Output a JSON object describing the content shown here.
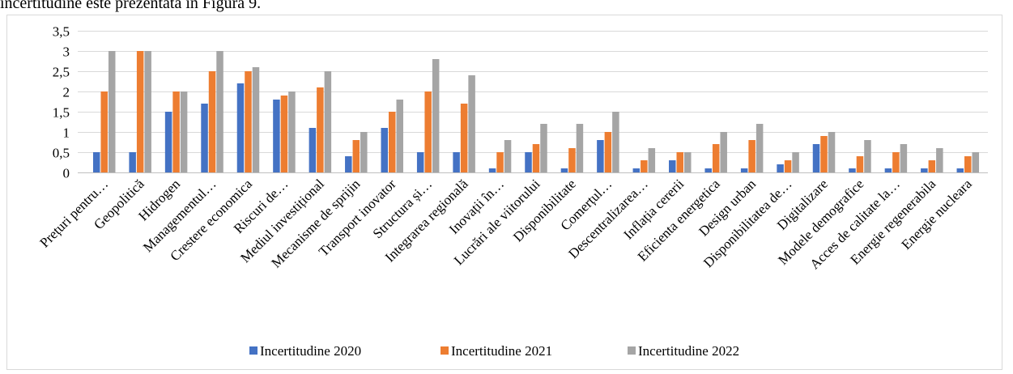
{
  "document": {
    "text_above": "incertitudine este prezentată în Figura 9."
  },
  "chart_data": {
    "type": "bar",
    "ylim": [
      0,
      3.5
    ],
    "yticks": [
      0,
      0.5,
      1,
      1.5,
      2,
      2.5,
      3,
      3.5
    ],
    "ytick_labels": [
      "0",
      "0,5",
      "1",
      "1,5",
      "2",
      "2,5",
      "3",
      "3,5"
    ],
    "grid": true,
    "legend": "bottom",
    "categories": [
      "Prețuri pentru…",
      "Geopolitică",
      "Hidrogen",
      "Managementul…",
      "Crestere economica",
      "Riscuri de…",
      "Mediul investițional",
      "Mecanisme de sprijin",
      "Transport inovator",
      "Structura și…",
      "Integrarea regională",
      "Inovații în…",
      "Lucrări ale viitorului",
      "Disponibilitate",
      "Comerțul…",
      "Descentralizarea…",
      "Inflația cererii",
      "Eficienta energetica",
      "Design urban",
      "Disponibilitatea de…",
      "Digitalizare",
      "Modele demografice",
      "Acces de calitate la…",
      "Energie regenerabila",
      "Energie nucleara"
    ],
    "series": [
      {
        "name": "Incertitudine 2020",
        "color": "#4472C4",
        "values": [
          0.5,
          0.5,
          1.5,
          1.7,
          2.2,
          1.8,
          1.1,
          0.4,
          1.1,
          0.5,
          0.5,
          0.1,
          0.5,
          0.1,
          0.8,
          0.1,
          0.3,
          0.1,
          0.1,
          0.2,
          0.7,
          0.1,
          0.1,
          0.1,
          0.1
        ]
      },
      {
        "name": "Incertitudine 2021",
        "color": "#ED7D31",
        "values": [
          2,
          3,
          2,
          2.5,
          2.5,
          1.9,
          2.1,
          0.8,
          1.5,
          2,
          1.7,
          0.5,
          0.7,
          0.6,
          1,
          0.3,
          0.5,
          0.7,
          0.8,
          0.3,
          0.9,
          0.4,
          0.5,
          0.3,
          0.4
        ]
      },
      {
        "name": "Incertitudine 2022",
        "color": "#A5A5A5",
        "values": [
          3,
          3,
          2,
          3,
          2.6,
          2,
          2.5,
          1,
          1.8,
          2.8,
          2.4,
          0.8,
          1.2,
          1.2,
          1.5,
          0.6,
          0.5,
          1,
          1.2,
          0.5,
          1,
          0.8,
          0.7,
          0.6,
          0.5
        ]
      }
    ]
  }
}
